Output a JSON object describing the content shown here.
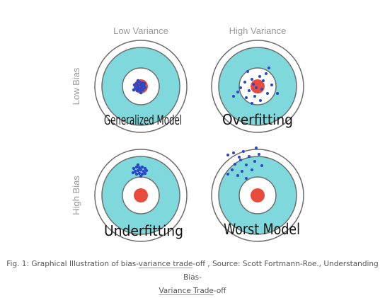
{
  "header": {
    "low_variance": "Low Variance",
    "high_variance": "High Variance",
    "low_bias": "Low Bias",
    "high_bias": "High Bias"
  },
  "panels": [
    {
      "id": "low-bias-low-variance",
      "label": "Generalized Model"
    },
    {
      "id": "low-bias-high-variance",
      "label": "Overfitting"
    },
    {
      "id": "high-bias-low-variance",
      "label": "Underfitting"
    },
    {
      "id": "high-bias-high-variance",
      "label": "Worst Model"
    }
  ],
  "caption": {
    "part1": "Fig. 1: Graphical Illustration of bias-",
    "link1": "variance trade",
    "part2": "-off , Source: Scott Fortmann-Roe., Understanding Bias-",
    "link2": "Variance Trade",
    "part3": "-off"
  },
  "colors": {
    "ring_outer": "#ffffff",
    "ring_teal": "#7fd9dc",
    "bullseye": "#e84a3b",
    "dots": "#2b47c9",
    "axis_text": "#9a9a9a",
    "label_text": "#111111"
  }
}
